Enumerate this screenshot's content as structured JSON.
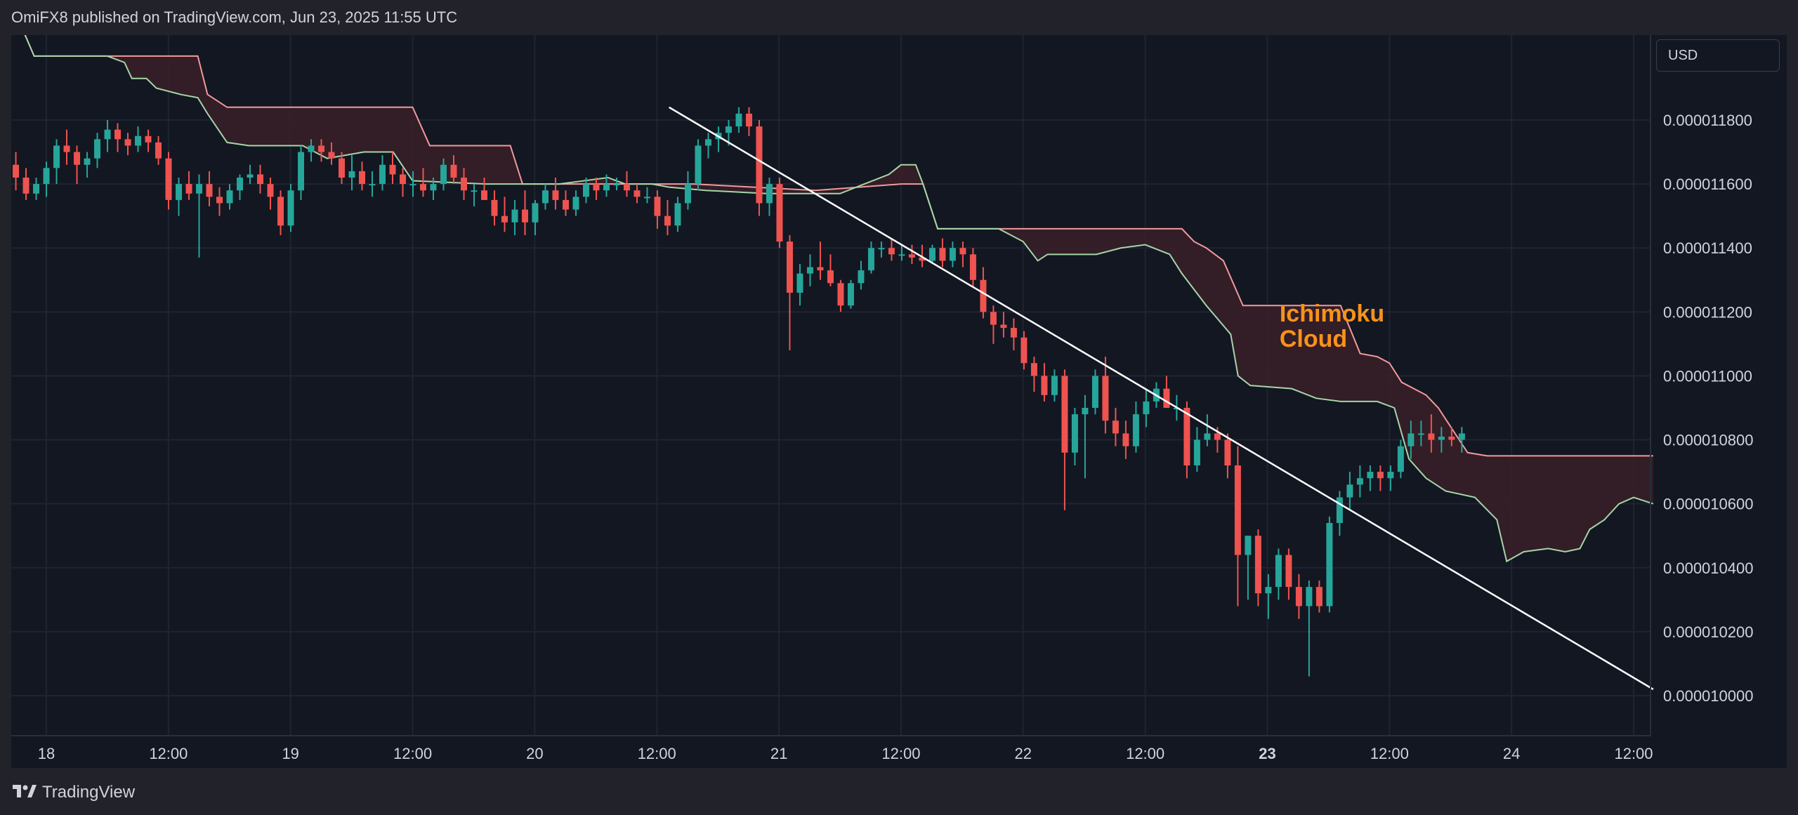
{
  "header": {
    "attribution": "OmiFX8 published on TradingView.com, Jun 23, 2025 11:55 UTC"
  },
  "footer": {
    "brand": "TradingView",
    "logo_icon": "tradingview-logo-icon"
  },
  "currency_selector": {
    "value": "USD"
  },
  "colors": {
    "background": "#131722",
    "up": "#26a69a",
    "down": "#ef5350",
    "cloud_fill": "#3a1f28",
    "span_a": "#a5d6a7",
    "span_b": "#f19a9a",
    "annotation": "#f7931a",
    "trendline": "#ffffff"
  },
  "chart_data": {
    "type": "candlestick",
    "title": "",
    "xlabel": "",
    "ylabel": "",
    "x_ticks": [
      {
        "label": "18",
        "t": 0,
        "bold": false
      },
      {
        "label": "12:00",
        "t": 0.5,
        "bold": false
      },
      {
        "label": "19",
        "t": 1,
        "bold": false
      },
      {
        "label": "12:00",
        "t": 1.5,
        "bold": false
      },
      {
        "label": "20",
        "t": 2,
        "bold": false
      },
      {
        "label": "12:00",
        "t": 2.5,
        "bold": false
      },
      {
        "label": "21",
        "t": 3,
        "bold": false
      },
      {
        "label": "12:00",
        "t": 3.5,
        "bold": false
      },
      {
        "label": "22",
        "t": 4,
        "bold": false
      },
      {
        "label": "12:00",
        "t": 4.5,
        "bold": false
      },
      {
        "label": "23",
        "t": 5,
        "bold": true
      },
      {
        "label": "12:00",
        "t": 5.5,
        "bold": false
      },
      {
        "label": "24",
        "t": 6,
        "bold": false
      },
      {
        "label": "12:00",
        "t": 6.5,
        "bold": false
      }
    ],
    "y_ticks": [
      "0.000011800",
      "0.000011600",
      "0.000011400",
      "0.000011200",
      "0.000011000",
      "0.000010800",
      "0.000010600",
      "0.000010400",
      "0.000010200",
      "0.000010000"
    ],
    "y_tick_values": [
      11.8,
      11.6,
      11.4,
      11.2,
      11.0,
      10.8,
      10.6,
      10.4,
      10.2,
      10.0
    ],
    "y_unit_note": "values below in units of 1e-6 USD",
    "ylim": [
      9.88,
      12.16
    ],
    "xlim": [
      -0.14,
      6.58
    ],
    "candle_interval_days": 0.0417,
    "first_candle_t": -0.125,
    "candles": [
      [
        11.66,
        11.7,
        11.58,
        11.62
      ],
      [
        11.62,
        11.65,
        11.55,
        11.57
      ],
      [
        11.57,
        11.62,
        11.55,
        11.6
      ],
      [
        11.6,
        11.67,
        11.56,
        11.65
      ],
      [
        11.65,
        11.74,
        11.6,
        11.72
      ],
      [
        11.72,
        11.77,
        11.66,
        11.7
      ],
      [
        11.7,
        11.72,
        11.6,
        11.66
      ],
      [
        11.66,
        11.7,
        11.62,
        11.68
      ],
      [
        11.68,
        11.76,
        11.65,
        11.74
      ],
      [
        11.74,
        11.8,
        11.7,
        11.77
      ],
      [
        11.77,
        11.79,
        11.7,
        11.74
      ],
      [
        11.74,
        11.76,
        11.69,
        11.72
      ],
      [
        11.72,
        11.78,
        11.7,
        11.75
      ],
      [
        11.75,
        11.77,
        11.7,
        11.73
      ],
      [
        11.73,
        11.75,
        11.66,
        11.68
      ],
      [
        11.68,
        11.7,
        11.52,
        11.55
      ],
      [
        11.55,
        11.62,
        11.5,
        11.6
      ],
      [
        11.6,
        11.64,
        11.55,
        11.57
      ],
      [
        11.57,
        11.63,
        11.37,
        11.6
      ],
      [
        11.6,
        11.64,
        11.53,
        11.56
      ],
      [
        11.56,
        11.59,
        11.5,
        11.54
      ],
      [
        11.54,
        11.6,
        11.52,
        11.58
      ],
      [
        11.58,
        11.63,
        11.55,
        11.62
      ],
      [
        11.62,
        11.66,
        11.6,
        11.63
      ],
      [
        11.63,
        11.66,
        11.57,
        11.6
      ],
      [
        11.6,
        11.62,
        11.52,
        11.56
      ],
      [
        11.56,
        11.58,
        11.44,
        11.47
      ],
      [
        11.47,
        11.6,
        11.45,
        11.58
      ],
      [
        11.58,
        11.72,
        11.55,
        11.7
      ],
      [
        11.7,
        11.74,
        11.67,
        11.72
      ],
      [
        11.72,
        11.74,
        11.67,
        11.7
      ],
      [
        11.7,
        11.73,
        11.66,
        11.68
      ],
      [
        11.68,
        11.7,
        11.6,
        11.62
      ],
      [
        11.62,
        11.69,
        11.58,
        11.64
      ],
      [
        11.64,
        11.67,
        11.58,
        11.6
      ],
      [
        11.6,
        11.64,
        11.56,
        11.6
      ],
      [
        11.6,
        11.69,
        11.58,
        11.66
      ],
      [
        11.66,
        11.7,
        11.6,
        11.63
      ],
      [
        11.63,
        11.65,
        11.56,
        11.6
      ],
      [
        11.6,
        11.64,
        11.56,
        11.6
      ],
      [
        11.6,
        11.65,
        11.56,
        11.58
      ],
      [
        11.58,
        11.62,
        11.55,
        11.6
      ],
      [
        11.6,
        11.68,
        11.58,
        11.66
      ],
      [
        11.66,
        11.69,
        11.6,
        11.62
      ],
      [
        11.62,
        11.65,
        11.55,
        11.58
      ],
      [
        11.58,
        11.6,
        11.53,
        11.58
      ],
      [
        11.58,
        11.62,
        11.55,
        11.55
      ],
      [
        11.55,
        11.58,
        11.47,
        11.5
      ],
      [
        11.5,
        11.56,
        11.45,
        11.48
      ],
      [
        11.48,
        11.55,
        11.44,
        11.52
      ],
      [
        11.52,
        11.58,
        11.44,
        11.48
      ],
      [
        11.48,
        11.55,
        11.44,
        11.54
      ],
      [
        11.54,
        11.6,
        11.52,
        11.58
      ],
      [
        11.58,
        11.62,
        11.52,
        11.55
      ],
      [
        11.55,
        11.58,
        11.5,
        11.52
      ],
      [
        11.52,
        11.58,
        11.5,
        11.56
      ],
      [
        11.56,
        11.62,
        11.54,
        11.6
      ],
      [
        11.6,
        11.62,
        11.55,
        11.58
      ],
      [
        11.58,
        11.63,
        11.56,
        11.6
      ],
      [
        11.6,
        11.62,
        11.58,
        11.6
      ],
      [
        11.6,
        11.64,
        11.56,
        11.58
      ],
      [
        11.58,
        11.6,
        11.54,
        11.56
      ],
      [
        11.56,
        11.59,
        11.54,
        11.56
      ],
      [
        11.56,
        11.58,
        11.46,
        11.5
      ],
      [
        11.5,
        11.55,
        11.44,
        11.47
      ],
      [
        11.47,
        11.56,
        11.45,
        11.54
      ],
      [
        11.54,
        11.64,
        11.52,
        11.6
      ],
      [
        11.6,
        11.74,
        11.58,
        11.72
      ],
      [
        11.72,
        11.76,
        11.68,
        11.74
      ],
      [
        11.74,
        11.78,
        11.7,
        11.76
      ],
      [
        11.76,
        11.8,
        11.72,
        11.78
      ],
      [
        11.78,
        11.84,
        11.76,
        11.82
      ],
      [
        11.82,
        11.84,
        11.75,
        11.78
      ],
      [
        11.78,
        11.8,
        11.5,
        11.54
      ],
      [
        11.54,
        11.62,
        11.5,
        11.6
      ],
      [
        11.6,
        11.62,
        11.4,
        11.42
      ],
      [
        11.42,
        11.44,
        11.08,
        11.26
      ],
      [
        11.26,
        11.35,
        11.22,
        11.32
      ],
      [
        11.32,
        11.38,
        11.28,
        11.34
      ],
      [
        11.34,
        11.42,
        11.3,
        11.33
      ],
      [
        11.33,
        11.38,
        11.28,
        11.29
      ],
      [
        11.29,
        11.3,
        11.2,
        11.22
      ],
      [
        11.22,
        11.3,
        11.21,
        11.29
      ],
      [
        11.29,
        11.36,
        11.27,
        11.33
      ],
      [
        11.33,
        11.42,
        11.32,
        11.4
      ],
      [
        11.4,
        11.42,
        11.37,
        11.4
      ],
      [
        11.4,
        11.43,
        11.36,
        11.38
      ],
      [
        11.38,
        11.41,
        11.36,
        11.38
      ],
      [
        11.38,
        11.41,
        11.35,
        11.37
      ],
      [
        11.37,
        11.41,
        11.34,
        11.36
      ],
      [
        11.36,
        11.41,
        11.35,
        11.4
      ],
      [
        11.4,
        11.43,
        11.34,
        11.36
      ],
      [
        11.36,
        11.42,
        11.34,
        11.4
      ],
      [
        11.4,
        11.42,
        11.34,
        11.38
      ],
      [
        11.38,
        11.4,
        11.28,
        11.3
      ],
      [
        11.3,
        11.34,
        11.18,
        11.2
      ],
      [
        11.2,
        11.22,
        11.1,
        11.16
      ],
      [
        11.16,
        11.2,
        11.12,
        11.15
      ],
      [
        11.15,
        11.18,
        11.08,
        11.12
      ],
      [
        11.12,
        11.14,
        11.02,
        11.04
      ],
      [
        11.04,
        11.06,
        10.95,
        11.0
      ],
      [
        11.0,
        11.04,
        10.92,
        10.94
      ],
      [
        10.94,
        11.02,
        10.92,
        11.0
      ],
      [
        11.0,
        11.02,
        10.58,
        10.76
      ],
      [
        10.76,
        10.9,
        10.72,
        10.88
      ],
      [
        10.88,
        10.94,
        10.68,
        10.9
      ],
      [
        10.9,
        11.02,
        10.88,
        11.0
      ],
      [
        11.0,
        11.06,
        10.82,
        10.86
      ],
      [
        10.86,
        10.9,
        10.78,
        10.82
      ],
      [
        10.82,
        10.86,
        10.74,
        10.78
      ],
      [
        10.78,
        10.92,
        10.76,
        10.88
      ],
      [
        10.88,
        10.96,
        10.84,
        10.92
      ],
      [
        10.92,
        10.98,
        10.9,
        10.96
      ],
      [
        10.96,
        11.0,
        10.9,
        10.9
      ],
      [
        10.9,
        10.94,
        10.86,
        10.9
      ],
      [
        10.9,
        10.92,
        10.68,
        10.72
      ],
      [
        10.72,
        10.84,
        10.7,
        10.8
      ],
      [
        10.8,
        10.88,
        10.78,
        10.82
      ],
      [
        10.82,
        10.84,
        10.76,
        10.8
      ],
      [
        10.8,
        10.82,
        10.68,
        10.72
      ],
      [
        10.72,
        10.78,
        10.28,
        10.44
      ],
      [
        10.44,
        10.5,
        10.3,
        10.5
      ],
      [
        10.5,
        10.52,
        10.28,
        10.32
      ],
      [
        10.32,
        10.38,
        10.24,
        10.34
      ],
      [
        10.34,
        10.46,
        10.3,
        10.44
      ],
      [
        10.44,
        10.46,
        10.3,
        10.34
      ],
      [
        10.34,
        10.38,
        10.24,
        10.28
      ],
      [
        10.28,
        10.36,
        10.06,
        10.34
      ],
      [
        10.34,
        10.36,
        10.26,
        10.28
      ],
      [
        10.28,
        10.56,
        10.26,
        10.54
      ],
      [
        10.54,
        10.64,
        10.5,
        10.62
      ],
      [
        10.62,
        10.7,
        10.58,
        10.66
      ],
      [
        10.66,
        10.72,
        10.62,
        10.68
      ],
      [
        10.68,
        10.72,
        10.64,
        10.7
      ],
      [
        10.7,
        10.72,
        10.64,
        10.68
      ],
      [
        10.68,
        10.72,
        10.64,
        10.7
      ],
      [
        10.7,
        10.8,
        10.68,
        10.78
      ],
      [
        10.78,
        10.86,
        10.74,
        10.82
      ],
      [
        10.82,
        10.86,
        10.78,
        10.82
      ],
      [
        10.82,
        10.88,
        10.76,
        10.8
      ],
      [
        10.8,
        10.84,
        10.76,
        10.81
      ],
      [
        10.81,
        10.84,
        10.78,
        10.8
      ],
      [
        10.8,
        10.84,
        10.76,
        10.82
      ]
    ],
    "ichimoku_cloud": {
      "label": "Ichimoku Cloud",
      "span_a": [
        [
          -0.14,
          12.16
        ],
        [
          -0.05,
          12.0
        ],
        [
          0.25,
          12.0
        ],
        [
          0.32,
          11.98
        ],
        [
          0.35,
          11.93
        ],
        [
          0.41,
          11.93
        ],
        [
          0.45,
          11.9
        ],
        [
          0.55,
          11.88
        ],
        [
          0.62,
          11.87
        ],
        [
          0.66,
          11.82
        ],
        [
          0.74,
          11.73
        ],
        [
          0.83,
          11.72
        ],
        [
          1.05,
          11.72
        ],
        [
          1.15,
          11.68
        ],
        [
          1.3,
          11.7
        ],
        [
          1.42,
          11.7
        ],
        [
          1.5,
          11.61
        ],
        [
          1.8,
          11.6
        ],
        [
          2.1,
          11.6
        ],
        [
          2.2,
          11.61
        ],
        [
          2.3,
          11.62
        ],
        [
          2.37,
          11.6
        ],
        [
          2.48,
          11.6
        ],
        [
          2.55,
          11.59
        ],
        [
          2.7,
          11.58
        ],
        [
          2.95,
          11.57
        ],
        [
          3.25,
          11.57
        ],
        [
          3.35,
          11.6
        ],
        [
          3.45,
          11.63
        ],
        [
          3.5,
          11.66
        ],
        [
          3.56,
          11.66
        ],
        [
          3.59,
          11.6
        ],
        [
          3.65,
          11.46
        ],
        [
          3.9,
          11.46
        ],
        [
          4.0,
          11.42
        ],
        [
          4.06,
          11.36
        ],
        [
          4.1,
          11.38
        ],
        [
          4.3,
          11.38
        ],
        [
          4.4,
          11.4
        ],
        [
          4.5,
          11.41
        ],
        [
          4.6,
          11.38
        ],
        [
          4.65,
          11.32
        ],
        [
          4.75,
          11.22
        ],
        [
          4.85,
          11.13
        ],
        [
          4.88,
          11.0
        ],
        [
          4.93,
          10.97
        ],
        [
          5.1,
          10.96
        ],
        [
          5.2,
          10.93
        ],
        [
          5.3,
          10.92
        ],
        [
          5.45,
          10.92
        ],
        [
          5.52,
          10.9
        ],
        [
          5.58,
          10.74
        ],
        [
          5.65,
          10.68
        ],
        [
          5.73,
          10.64
        ],
        [
          5.85,
          10.62
        ],
        [
          5.94,
          10.55
        ],
        [
          5.98,
          10.42
        ],
        [
          6.05,
          10.45
        ],
        [
          6.15,
          10.46
        ],
        [
          6.22,
          10.45
        ],
        [
          6.28,
          10.46
        ],
        [
          6.32,
          10.52
        ],
        [
          6.38,
          10.55
        ],
        [
          6.44,
          10.6
        ],
        [
          6.5,
          10.62
        ],
        [
          6.58,
          10.6
        ]
      ],
      "span_b": [
        [
          -0.14,
          12.16
        ],
        [
          -0.05,
          12.0
        ],
        [
          0.62,
          12.0
        ],
        [
          0.66,
          11.88
        ],
        [
          0.74,
          11.84
        ],
        [
          1.5,
          11.84
        ],
        [
          1.57,
          11.72
        ],
        [
          1.9,
          11.72
        ],
        [
          1.95,
          11.6
        ],
        [
          2.65,
          11.6
        ],
        [
          3.15,
          11.58
        ],
        [
          3.5,
          11.6
        ],
        [
          3.59,
          11.6
        ],
        [
          3.65,
          11.46
        ],
        [
          4.2,
          11.46
        ],
        [
          4.5,
          11.46
        ],
        [
          4.65,
          11.46
        ],
        [
          4.7,
          11.42
        ],
        [
          4.75,
          11.4
        ],
        [
          4.82,
          11.36
        ],
        [
          4.9,
          11.22
        ],
        [
          5.3,
          11.22
        ],
        [
          5.38,
          11.07
        ],
        [
          5.45,
          11.06
        ],
        [
          5.5,
          11.04
        ],
        [
          5.55,
          10.98
        ],
        [
          5.65,
          10.94
        ],
        [
          5.7,
          10.9
        ],
        [
          5.82,
          10.76
        ],
        [
          5.9,
          10.75
        ],
        [
          6.58,
          10.75
        ]
      ]
    },
    "trendline": {
      "t1": 2.55,
      "v1": 11.84,
      "t2": 6.58,
      "v2": 10.02
    },
    "annotation": {
      "text_line1": "Ichimoku",
      "text_line2": "Cloud",
      "t": 5.05,
      "v": 11.17
    }
  }
}
